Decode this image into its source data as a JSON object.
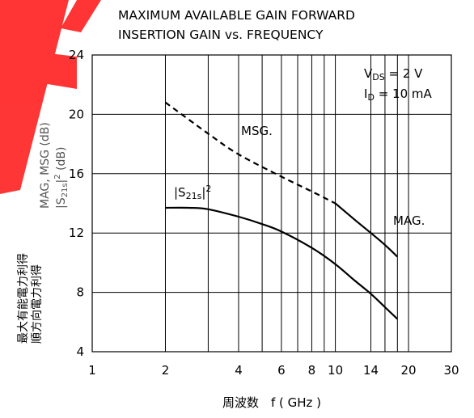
{
  "chart_data": {
    "type": "line",
    "title_lines": [
      "MAXIMUM AVAILABLE GAIN FORWARD",
      "INSERTION GAIN vs. FREQUENCY"
    ],
    "xlabel": "周波数　f ( GHz )",
    "ylabel_left_lines": [
      "最大有能電力利得",
      "順方向電力利得"
    ],
    "ylabel_right_lines": [
      "MAG, MSG  (dB)",
      "|S21s|2  (dB)"
    ],
    "x_scale": "log",
    "xlim": [
      1,
      30
    ],
    "ylim": [
      4,
      24
    ],
    "x_ticks": [
      1,
      2,
      4,
      6,
      8,
      10,
      14,
      20,
      30
    ],
    "x_tick_labels": [
      "1",
      "2",
      "4",
      "6",
      "8",
      "10",
      "14",
      "20",
      "30"
    ],
    "x_gridlines": [
      2,
      3,
      4,
      5,
      6,
      7,
      8,
      9,
      10,
      14,
      16,
      18,
      20
    ],
    "y_ticks": [
      4,
      8,
      12,
      16,
      20,
      24
    ],
    "y_tick_labels": [
      "4",
      "8",
      "12",
      "16",
      "20",
      "24"
    ],
    "conditions": [
      "VDS = 2 V",
      "ID = 10 mA"
    ],
    "series": [
      {
        "name": "MSG.",
        "style": "dashed",
        "x": [
          2,
          3,
          4,
          6,
          8,
          10
        ],
        "y": [
          20.8,
          18.7,
          17.3,
          15.8,
          14.8,
          14.0
        ]
      },
      {
        "name": "MAG.",
        "style": "solid",
        "x": [
          10,
          12,
          14,
          16,
          18
        ],
        "y": [
          14.0,
          12.9,
          12.0,
          11.2,
          10.4
        ]
      },
      {
        "name": "|S21s|2",
        "style": "solid",
        "x": [
          2,
          2.5,
          3,
          4,
          5,
          6,
          8,
          10,
          12,
          14,
          16,
          18
        ],
        "y": [
          13.7,
          13.7,
          13.6,
          13.1,
          12.6,
          12.1,
          11.0,
          9.9,
          8.8,
          7.9,
          7.0,
          6.2
        ]
      }
    ],
    "annotations": {
      "msg": "MSG.",
      "mag": "MAG.",
      "s21_main": "|S",
      "s21_sub": "21s",
      "s21_tail": "|",
      "s21_sup": "2",
      "vds_main": "V",
      "vds_sub": "DS",
      "vds_tail": " = 2 V",
      "id_main": "I",
      "id_sub": "D",
      "id_tail": " = 10 mA"
    },
    "ylabel_right": {
      "line1": "MAG, MSG  (dB)",
      "line2_main": "|S",
      "line2_sub": "21s",
      "line2_tail": "|",
      "line2_sup": "2",
      "line2_unit": "  (dB)"
    },
    "colors": {
      "line": "#000000",
      "grid": "#000000",
      "right_label": "#555555",
      "watermark": "#ff0000"
    }
  }
}
